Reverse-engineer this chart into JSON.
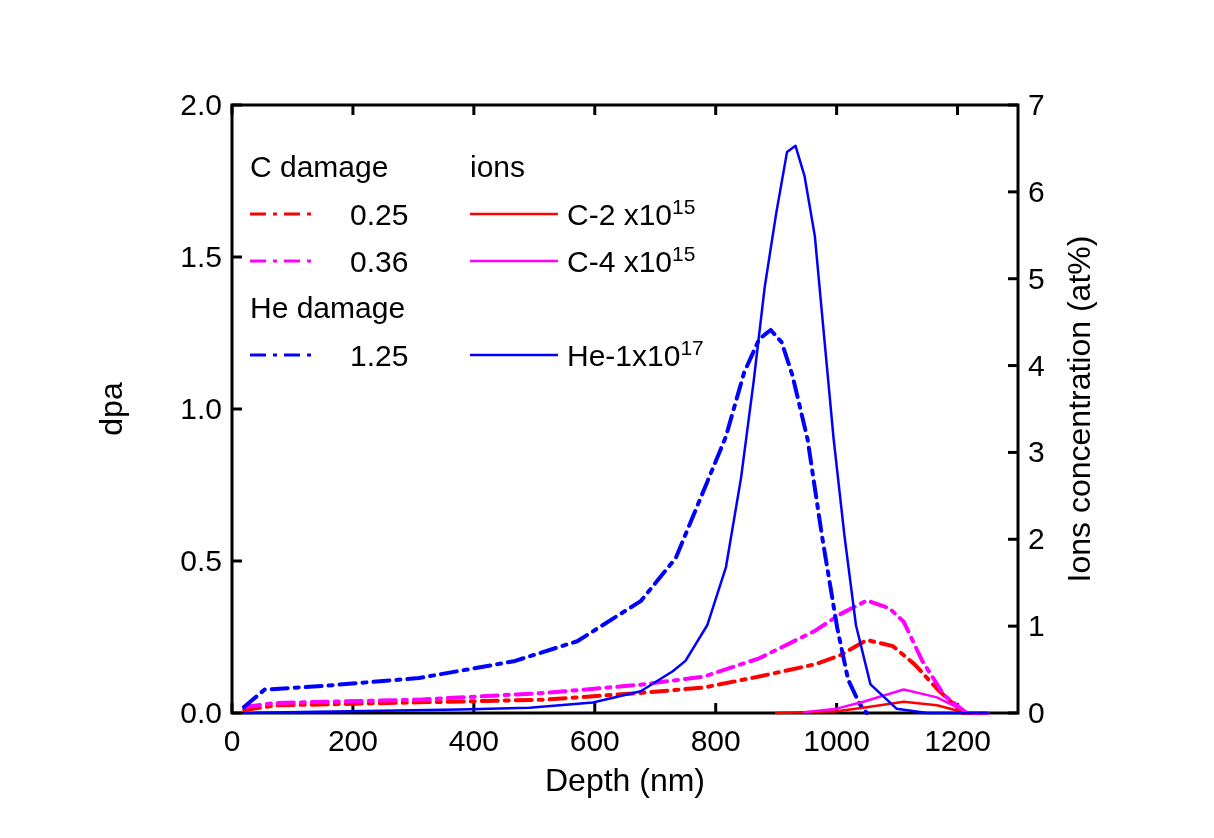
{
  "chart_data": {
    "type": "line",
    "xlabel": "Depth (nm)",
    "ylabel": "dpa",
    "y2label": "Ions concentration (at%)",
    "xlim": [
      0,
      1300
    ],
    "xticks": [
      0,
      200,
      400,
      600,
      800,
      1000,
      1200
    ],
    "ylim": [
      0,
      2
    ],
    "yticks": [
      {
        "value": 0,
        "label": "0.0"
      },
      {
        "value": 0.5,
        "label": "0.5"
      },
      {
        "value": 1,
        "label": "1.0"
      },
      {
        "value": 1.5,
        "label": "1.5"
      },
      {
        "value": 2,
        "label": "2.0"
      }
    ],
    "y2lim": [
      0,
      7
    ],
    "y2ticks": [
      0,
      1,
      2,
      3,
      4,
      5,
      6,
      7
    ],
    "legend": "top left",
    "grid": false,
    "annotations": [
      "C damage",
      "He damage",
      "ions"
    ],
    "series": [
      {
        "name": "0.25",
        "color": "#ff0000",
        "line_style": "dashed",
        "x": [
          20,
          72,
          309,
          518,
          676,
          781,
          872,
          964,
          1006,
          1050,
          1093,
          1129,
          1166,
          1209,
          1250
        ],
        "values": [
          0.01,
          0.025,
          0.035,
          0.044,
          0.066,
          0.084,
          0.12,
          0.16,
          0.19,
          0.24,
          0.22,
          0.16,
          0.08,
          0,
          0
        ]
      },
      {
        "name": "0.36",
        "color": "#ff00ff",
        "line_style": "dashed",
        "x": [
          20,
          72,
          309,
          518,
          676,
          781,
          872,
          964,
          1006,
          1050,
          1087,
          1111,
          1142,
          1178,
          1215,
          1250
        ],
        "values": [
          0.02,
          0.033,
          0.044,
          0.066,
          0.093,
          0.12,
          0.18,
          0.27,
          0.325,
          0.37,
          0.345,
          0.3,
          0.17,
          0.058,
          0,
          0
        ]
      },
      {
        "name": "1.25",
        "color": "#0000ff",
        "line_style": "dashed",
        "x": [
          20,
          54,
          151,
          309,
          466,
          571,
          676,
          734,
          786,
          817,
          847,
          872,
          891,
          909,
          927,
          952,
          976,
          1001,
          1019,
          1038,
          1050
        ],
        "values": [
          0.02,
          0.077,
          0.089,
          0.115,
          0.17,
          0.236,
          0.368,
          0.51,
          0.76,
          0.91,
          1.12,
          1.23,
          1.26,
          1.22,
          1.11,
          0.9,
          0.58,
          0.28,
          0.11,
          0.03,
          0
        ]
      },
      {
        "name": "C-2 x10$^{15}$",
        "color": "#ff0000",
        "axis": "y2",
        "line_style": "solid",
        "x": [
          900,
          1000,
          1044,
          1111,
          1166,
          1215,
          1250
        ],
        "values": [
          0,
          0.02,
          0.06,
          0.13,
          0.09,
          0,
          0
        ]
      },
      {
        "name": "C-4 x10$^{15}$",
        "color": "#ff00ff",
        "axis": "y2",
        "line_style": "solid",
        "x": [
          947,
          1000,
          1044,
          1111,
          1166,
          1215,
          1250
        ],
        "values": [
          0.01,
          0.05,
          0.13,
          0.27,
          0.18,
          0.01,
          0
        ]
      },
      {
        "name": "He-1x10$^{17}$",
        "color": "#0000ff",
        "axis": "y2",
        "line_style": "solid",
        "x": [
          20,
          377,
          492,
          597,
          676,
          729,
          750,
          786,
          817,
          842,
          863,
          881,
          900,
          918,
          932,
          947,
          964,
          979,
          995,
          1013,
          1032,
          1056,
          1099,
          1150,
          1250
        ],
        "values": [
          0,
          0.04,
          0.06,
          0.12,
          0.25,
          0.48,
          0.6,
          1.01,
          1.68,
          2.71,
          3.83,
          4.9,
          5.75,
          6.46,
          6.53,
          6.18,
          5.49,
          4.36,
          3.16,
          2.04,
          1.01,
          0.33,
          0.05,
          0,
          0
        ]
      }
    ]
  }
}
